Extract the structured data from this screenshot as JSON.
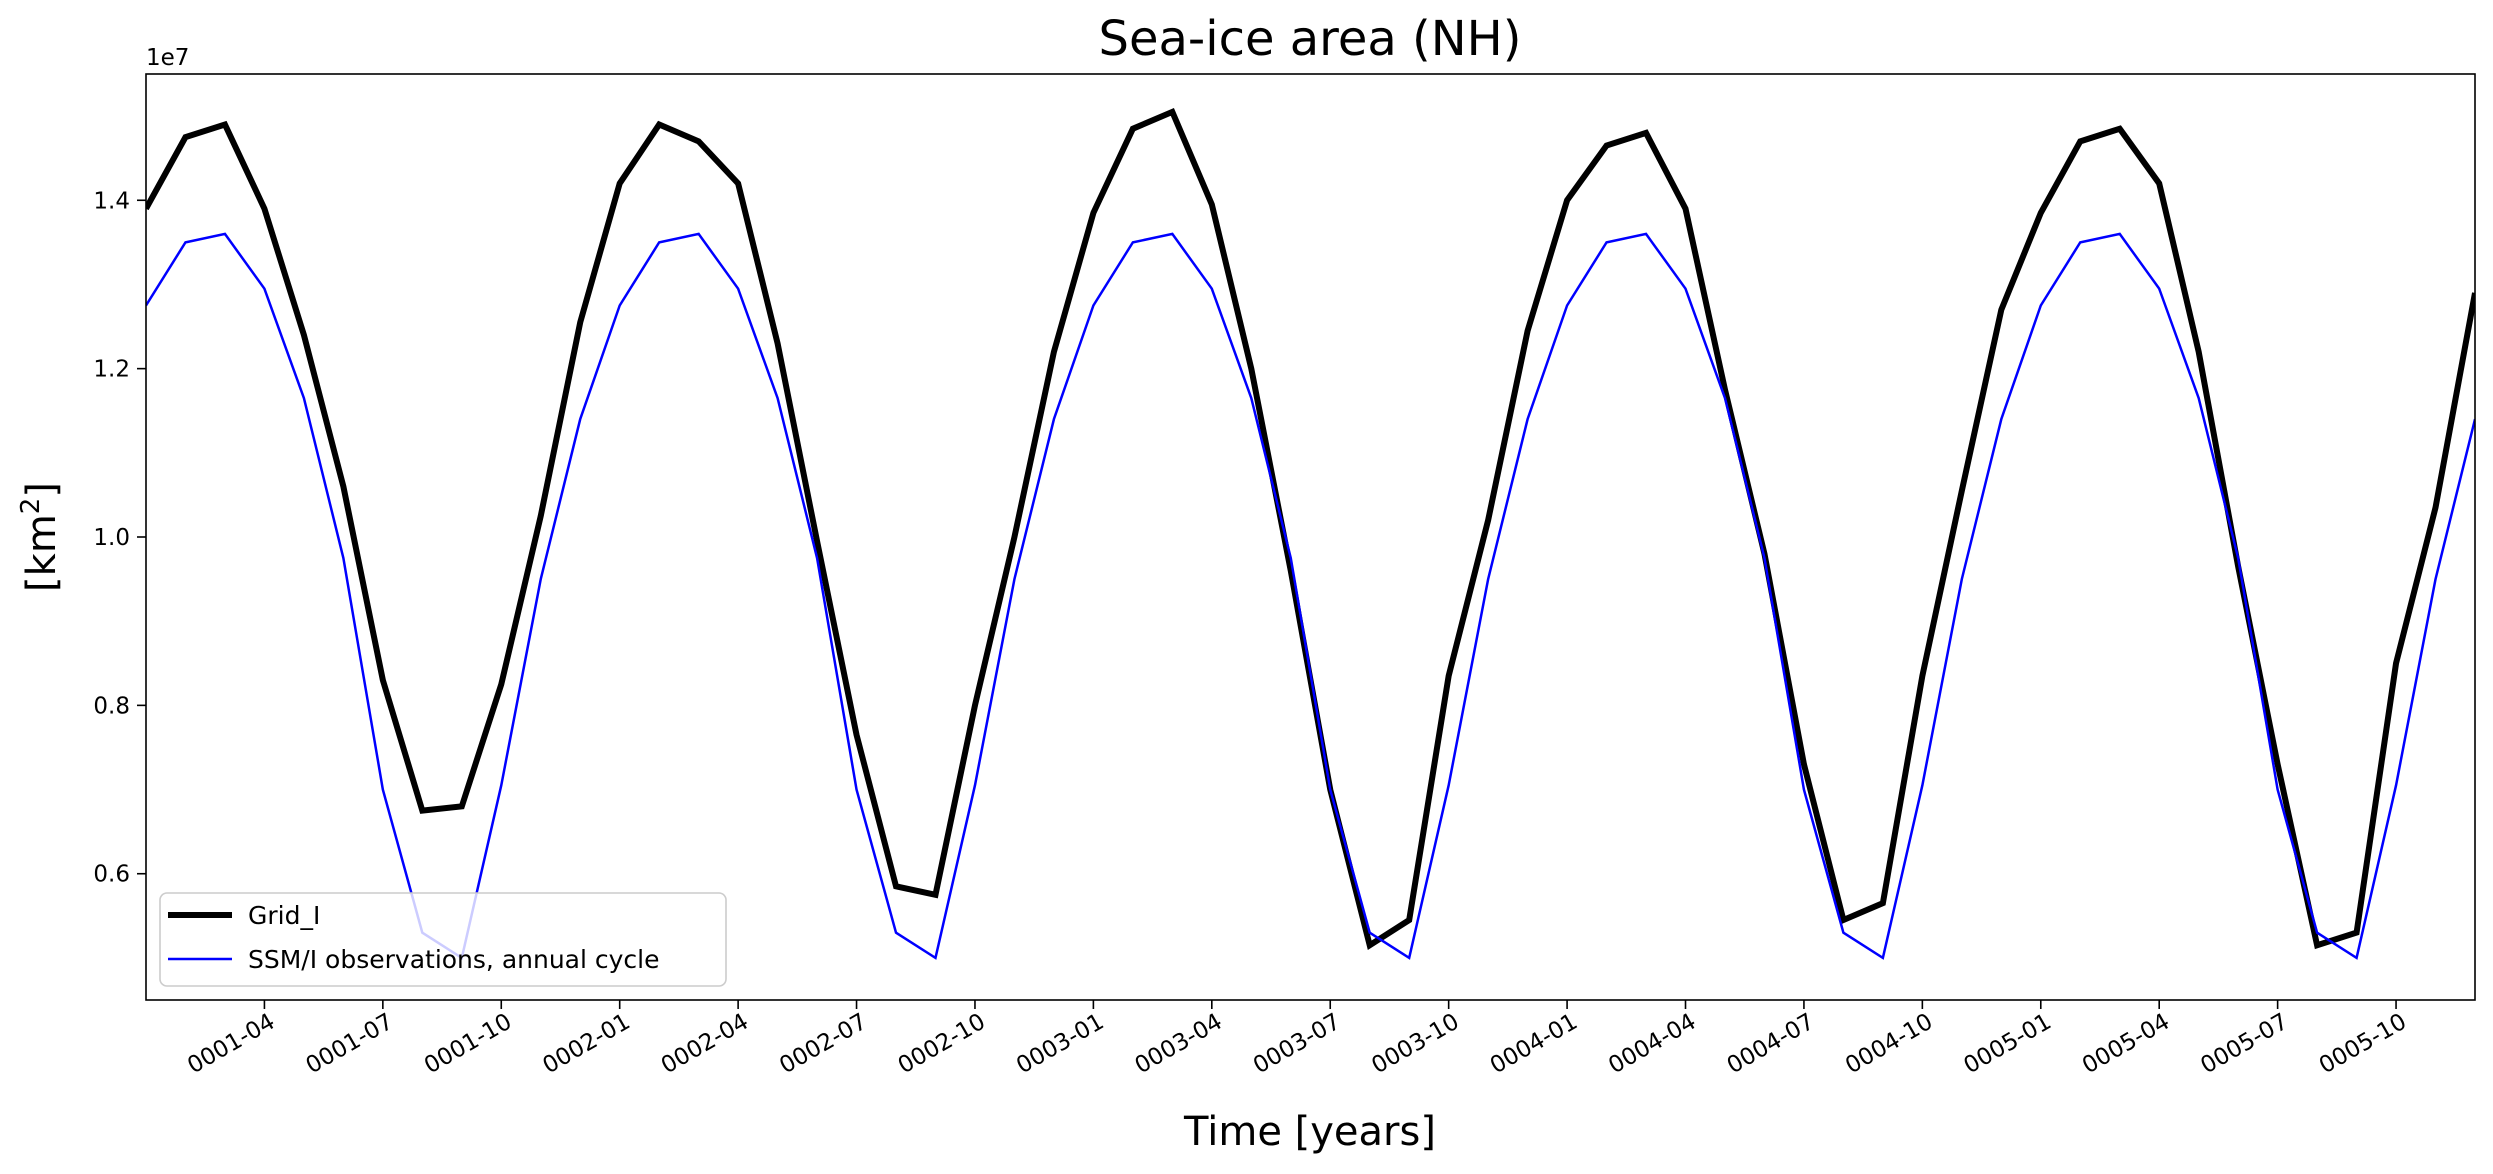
{
  "chart_data": {
    "type": "line",
    "title": "Sea-ice area (NH)",
    "xlabel": "Time [years]",
    "ylabel_main": "[km",
    "ylabel_sup": "2",
    "ylabel_close": "]",
    "y_offset_label": "1e7",
    "y_scale": 10000000,
    "ylim": [
      4.5,
      15.5
    ],
    "xlim": [
      0.0,
      59.0
    ],
    "yticks": [
      0.6,
      0.8,
      1.0,
      1.2,
      1.4
    ],
    "ytick_labels": [
      "0.6",
      "0.8",
      "1.0",
      "1.2",
      "1.4"
    ],
    "xticks": [
      3,
      6,
      9,
      12,
      15,
      18,
      21,
      24,
      27,
      30,
      33,
      36,
      39,
      42,
      45,
      48,
      51,
      54,
      57
    ],
    "xtick_labels": [
      "0001-04",
      "0001-07",
      "0001-10",
      "0002-01",
      "0002-04",
      "0002-07",
      "0002-10",
      "0003-01",
      "0003-04",
      "0003-07",
      "0003-10",
      "0004-01",
      "0004-04",
      "0004-07",
      "0004-10",
      "0005-01",
      "0005-04",
      "0005-07",
      "0005-10"
    ],
    "x": [
      0,
      1,
      2,
      3,
      4,
      5,
      6,
      7,
      8,
      9,
      10,
      11,
      12,
      13,
      14,
      15,
      16,
      17,
      18,
      19,
      20,
      21,
      22,
      23,
      24,
      25,
      26,
      27,
      28,
      29,
      30,
      31,
      32,
      33,
      34,
      35,
      36,
      37,
      38,
      39,
      40,
      41,
      42,
      43,
      44,
      45,
      46,
      47,
      48,
      49,
      50,
      51,
      52,
      53,
      54,
      55,
      56,
      57,
      58,
      59
    ],
    "series": [
      {
        "name": "Grid_I",
        "color": "#000000",
        "line_style": "thick",
        "values": [
          13.9,
          14.75,
          14.9,
          13.9,
          12.4,
          10.6,
          8.3,
          6.75,
          6.8,
          8.25,
          10.25,
          12.55,
          14.2,
          14.9,
          14.7,
          14.2,
          12.3,
          9.95,
          7.65,
          5.85,
          5.75,
          8.0,
          10.0,
          12.2,
          13.85,
          14.85,
          15.05,
          13.95,
          12.0,
          9.6,
          7.0,
          5.15,
          5.45,
          8.35,
          10.2,
          12.45,
          14.0,
          14.65,
          14.8,
          13.9,
          11.75,
          9.8,
          7.3,
          5.45,
          5.65,
          8.35,
          10.55,
          12.7,
          13.85,
          14.7,
          14.85,
          14.2,
          12.2,
          9.65,
          7.3,
          5.15,
          5.3,
          8.5,
          10.35,
          12.9
        ]
      },
      {
        "name": "SSM/I observations, annual cycle",
        "color": "#0000ff",
        "line_style": "thin",
        "values": [
          12.75,
          13.5,
          13.6,
          12.95,
          11.65,
          9.75,
          7.0,
          5.3,
          5.0,
          7.05,
          9.5,
          11.4,
          12.75,
          13.5,
          13.6,
          12.95,
          11.65,
          9.75,
          7.0,
          5.3,
          5.0,
          7.05,
          9.5,
          11.4,
          12.75,
          13.5,
          13.6,
          12.95,
          11.65,
          9.75,
          7.0,
          5.3,
          5.0,
          7.05,
          9.5,
          11.4,
          12.75,
          13.5,
          13.6,
          12.95,
          11.65,
          9.75,
          7.0,
          5.3,
          5.0,
          7.05,
          9.5,
          11.4,
          12.75,
          13.5,
          13.6,
          12.95,
          11.65,
          9.75,
          7.0,
          5.3,
          5.0,
          7.05,
          9.5,
          11.4
        ]
      }
    ],
    "legend_position": "lower-left",
    "grid": false
  }
}
